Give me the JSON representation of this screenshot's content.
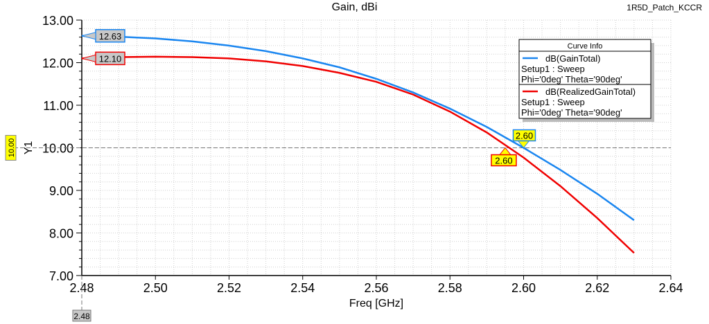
{
  "chart_data": {
    "type": "line",
    "title": "Gain, dBi",
    "project": "1R5D_Patch_KCCR",
    "xlabel": "Freq [GHz]",
    "ylabel": "Y1",
    "xlim": [
      2.48,
      2.64
    ],
    "ylim": [
      7.0,
      13.0
    ],
    "xticks": [
      "2.48",
      "2.50",
      "2.52",
      "2.54",
      "2.56",
      "2.58",
      "2.60",
      "2.62",
      "2.64"
    ],
    "yticks": [
      "7.00",
      "8.00",
      "9.00",
      "10.00",
      "11.00",
      "12.00",
      "13.00"
    ],
    "grid": true,
    "legend": {
      "title": "Curve Info",
      "position": "top-right",
      "entries": [
        {
          "name": "dB(GainTotal)",
          "line2": "Setup1 : Sweep",
          "line3": "Phi='0deg' Theta='90deg'"
        },
        {
          "name": "dB(RealizedGainTotal)",
          "line2": "Setup1 : Sweep",
          "line3": "Phi='0deg' Theta='90deg'"
        }
      ]
    },
    "series": [
      {
        "name": "dB(GainTotal)",
        "color": "#1a86f0",
        "x": [
          2.48,
          2.49,
          2.5,
          2.51,
          2.52,
          2.53,
          2.54,
          2.55,
          2.56,
          2.57,
          2.58,
          2.59,
          2.6,
          2.61,
          2.62,
          2.63
        ],
        "y": [
          12.63,
          12.61,
          12.57,
          12.5,
          12.4,
          12.27,
          12.1,
          11.89,
          11.62,
          11.3,
          10.92,
          10.49,
          10.0,
          9.48,
          8.92,
          8.3
        ]
      },
      {
        "name": "dB(RealizedGainTotal)",
        "color": "#f00000",
        "x": [
          2.48,
          2.49,
          2.5,
          2.51,
          2.52,
          2.53,
          2.54,
          2.55,
          2.56,
          2.57,
          2.58,
          2.59,
          2.6,
          2.61,
          2.62,
          2.63
        ],
        "y": [
          12.1,
          12.13,
          12.14,
          12.13,
          12.1,
          12.03,
          11.92,
          11.76,
          11.55,
          11.25,
          10.85,
          10.36,
          9.77,
          9.1,
          8.35,
          7.53
        ]
      }
    ],
    "markers": [
      {
        "series": 0,
        "x": 2.48,
        "y": 12.63,
        "label": "12.63"
      },
      {
        "series": 1,
        "x": 2.48,
        "y": 12.1,
        "label": "12.10"
      },
      {
        "series": 0,
        "x": 2.6,
        "y": 10.0,
        "label": "2.60"
      },
      {
        "series": 1,
        "x": 2.595,
        "y": 10.0,
        "label": "2.60"
      }
    ],
    "y_marker": {
      "value": 10.0,
      "label": "10.00"
    },
    "x_marker": {
      "value": 2.48,
      "label": "2.48"
    }
  }
}
